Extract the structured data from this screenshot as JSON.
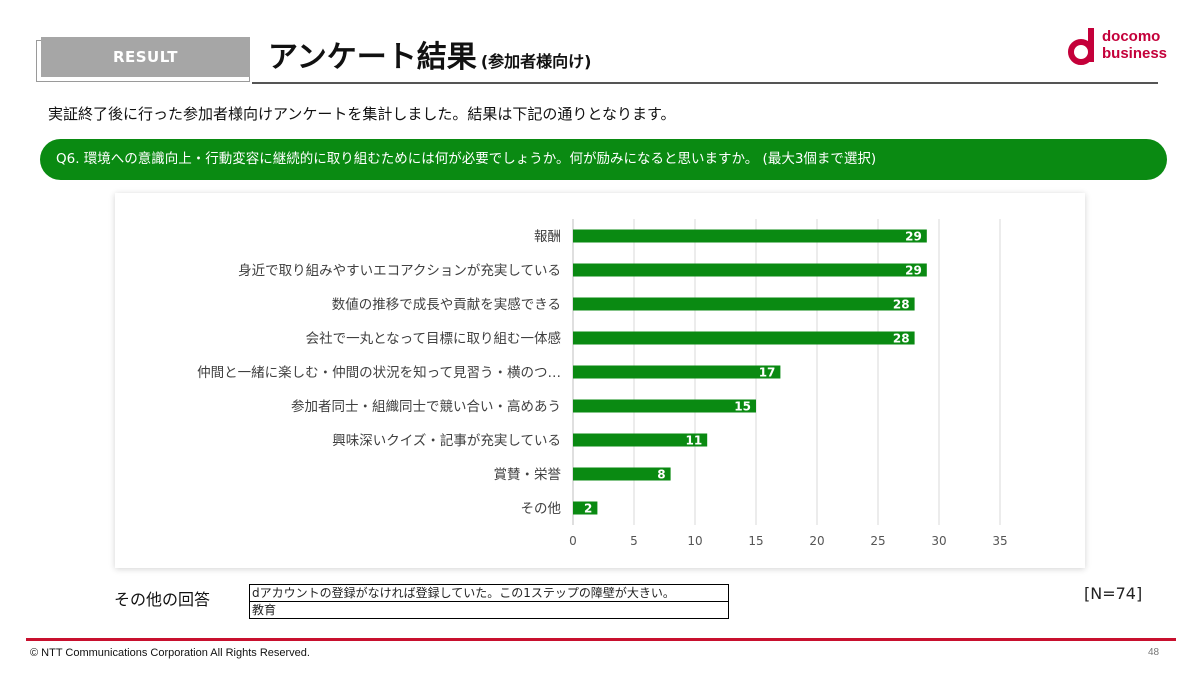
{
  "header": {
    "section_tag": "RESULT",
    "title": "アンケート結果",
    "title_sub": "(参加者様向け)"
  },
  "logo": {
    "line1": "docomo",
    "line2": "business",
    "color": "#c4003a"
  },
  "intro_text": "実証終了後に行った参加者様向けアンケートを集計しました。結果は下記の通りとなります。",
  "question_text": "Q6. 環境への意識向上・行動変容に継続的に取り組むためには何が必要でしょうか。何が励みになると思いますか。 (最大3個まで選択)",
  "chart_data": {
    "type": "bar",
    "orientation": "horizontal",
    "categories": [
      "報酬",
      "身近で取り組みやすいエコアクションが充実している",
      "数値の推移で成長や貢献を実感できる",
      "会社で一丸となって目標に取り組む一体感",
      "仲間と一緒に楽しむ・仲間の状況を知って見習う・横のつ…",
      "参加者同士・組織同士で競い合い・高めあう",
      "興味深いクイズ・記事が充実している",
      "賞賛・栄誉",
      "その他"
    ],
    "values": [
      29,
      29,
      28,
      28,
      17,
      15,
      11,
      8,
      2
    ],
    "xlim": [
      0,
      35
    ],
    "xticks": [
      0,
      5,
      10,
      15,
      20,
      25,
      30,
      35
    ],
    "grid": true,
    "data_labels": true,
    "bar_color": "#0a8a12"
  },
  "other_answers": {
    "label": "その他の回答",
    "items": [
      "dアカウントの登録がなければ登録していた。この1ステップの障壁が大きい。",
      "教育"
    ]
  },
  "n_label": "[N=74]",
  "footer": {
    "copyright": "© NTT Communications Corporation All Rights Reserved.",
    "page_number": "48"
  },
  "colors": {
    "accent_green": "#0a8a12",
    "footer_red": "#c8102e",
    "tag_gray": "#a6a6a6"
  }
}
